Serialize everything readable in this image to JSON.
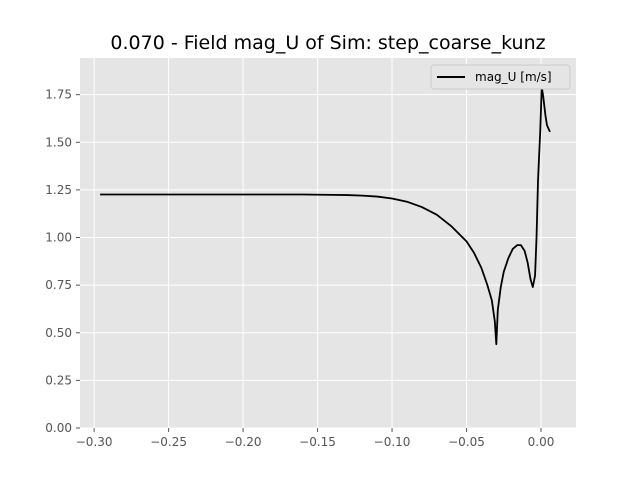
{
  "chart_data": {
    "type": "line",
    "title": "0.070 - Field mag_U of Sim: step_coarse_kunz",
    "xlabel": "",
    "ylabel": "",
    "xlim": [
      -0.3095,
      0.0235
    ],
    "ylim": [
      0.0,
      1.9425
    ],
    "grid": true,
    "legend_position": "top-right",
    "x_ticks": [
      -0.3,
      -0.25,
      -0.2,
      -0.15,
      -0.1,
      -0.05,
      0.0
    ],
    "x_tick_labels": [
      "−0.30",
      "−0.25",
      "−0.20",
      "−0.15",
      "−0.10",
      "−0.05",
      "0.00"
    ],
    "y_ticks": [
      0.0,
      0.25,
      0.5,
      0.75,
      1.0,
      1.25,
      1.5,
      1.75
    ],
    "y_tick_labels": [
      "0.00",
      "0.25",
      "0.50",
      "0.75",
      "1.00",
      "1.25",
      "1.50",
      "1.75"
    ],
    "series": [
      {
        "name": "mag_U [m/s]",
        "color": "#000000",
        "x": [
          -0.296,
          -0.28,
          -0.26,
          -0.24,
          -0.22,
          -0.2,
          -0.18,
          -0.16,
          -0.14,
          -0.13,
          -0.12,
          -0.11,
          -0.1,
          -0.09,
          -0.08,
          -0.07,
          -0.06,
          -0.05,
          -0.045,
          -0.04,
          -0.036,
          -0.033,
          -0.031,
          -0.03,
          -0.029,
          -0.027,
          -0.025,
          -0.022,
          -0.019,
          -0.016,
          -0.0135,
          -0.011,
          -0.009,
          -0.007,
          -0.0055,
          -0.004,
          -0.003,
          -0.002,
          -0.0005,
          0.0005,
          0.0015,
          0.003,
          0.004,
          0.006
        ],
        "y": [
          1.226,
          1.226,
          1.226,
          1.226,
          1.226,
          1.226,
          1.226,
          1.226,
          1.224,
          1.223,
          1.22,
          1.215,
          1.205,
          1.188,
          1.16,
          1.12,
          1.058,
          0.98,
          0.92,
          0.84,
          0.75,
          0.67,
          0.56,
          0.44,
          0.62,
          0.74,
          0.82,
          0.89,
          0.94,
          0.96,
          0.96,
          0.93,
          0.87,
          0.78,
          0.74,
          0.8,
          1.0,
          1.3,
          1.56,
          1.79,
          1.74,
          1.64,
          1.59,
          1.555
        ]
      }
    ]
  }
}
